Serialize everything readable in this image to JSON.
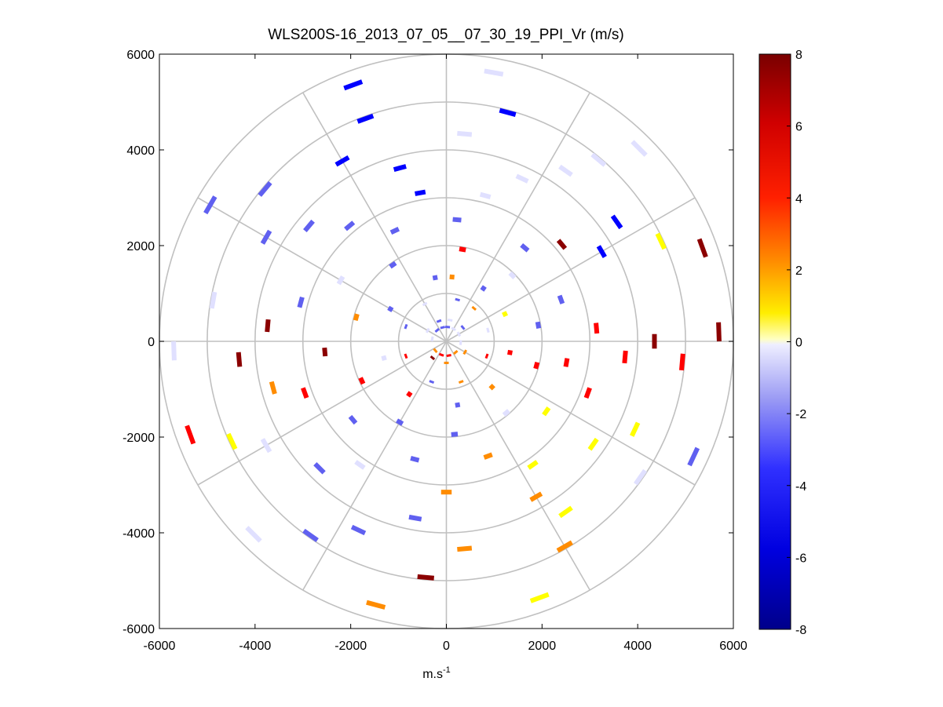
{
  "chart_data": {
    "type": "polar-ppi-scatter",
    "title": "WLS200S-16_2013_07_05__07_30_19_PPI_Vr (m/s)",
    "xlabel_base": "m.s",
    "xlabel_exp": "-1",
    "ylabel": "",
    "xlim": [
      -6000,
      6000
    ],
    "ylim": [
      -6000,
      6000
    ],
    "x_ticks": [
      "-6000",
      "-4000",
      "-2000",
      "0",
      "2000",
      "4000",
      "6000"
    ],
    "y_ticks": [
      "6000",
      "4000",
      "2000",
      "0",
      "-2000",
      "-4000",
      "-6000"
    ],
    "range_rings": [
      1000,
      2000,
      3000,
      4000,
      5000,
      6000
    ],
    "azimuth_spokes_deg": [
      0,
      30,
      60,
      90,
      120,
      150,
      180,
      210,
      240,
      270,
      300,
      330
    ],
    "grid": true,
    "colorbar": {
      "min": -8,
      "max": 8,
      "tick_labels": [
        "8",
        "6",
        "4",
        "2",
        "0",
        "-2",
        "-4",
        "-6",
        "-8"
      ],
      "colormap": "blue-white-yellow-red",
      "colors": [
        "#00008f",
        "#0000ff",
        "#6060f0",
        "#e0e0ff",
        "#ffff00",
        "#ff8c00",
        "#ff0000",
        "#8b0000"
      ]
    },
    "ranges": [
      300,
      450,
      600,
      750,
      900,
      1050,
      1200,
      1350,
      1500,
      1650,
      1800,
      1950,
      2100,
      2250,
      2400,
      2550,
      2700,
      2850,
      3000,
      3150,
      3300,
      3450,
      3600,
      3750,
      3900,
      4050,
      4200,
      4350,
      4500,
      4650,
      4800,
      4950,
      5100,
      5250,
      5400,
      5550,
      5700,
      5850
    ],
    "bins": [
      {
        "az": 5,
        "r": 300,
        "v": -3
      },
      {
        "az": 30,
        "r": 300,
        "v": -2
      },
      {
        "az": 60,
        "r": 300,
        "v": -2
      },
      {
        "az": 95,
        "r": 300,
        "v": -1
      },
      {
        "az": 140,
        "r": 300,
        "v": 3
      },
      {
        "az": 170,
        "r": 300,
        "v": 4
      },
      {
        "az": 200,
        "r": 300,
        "v": 5
      },
      {
        "az": 230,
        "r": 300,
        "v": 3
      },
      {
        "az": 280,
        "r": 300,
        "v": -1
      },
      {
        "az": 320,
        "r": 300,
        "v": -3
      },
      {
        "az": 345,
        "r": 300,
        "v": -4
      },
      {
        "az": 10,
        "r": 450,
        "v": -2
      },
      {
        "az": 50,
        "r": 450,
        "v": -3
      },
      {
        "az": 120,
        "r": 450,
        "v": 2
      },
      {
        "az": 180,
        "r": 450,
        "v": 3
      },
      {
        "az": 220,
        "r": 450,
        "v": 6
      },
      {
        "az": 300,
        "r": 450,
        "v": -2
      },
      {
        "az": 340,
        "r": 450,
        "v": -3
      },
      {
        "az": 15,
        "r": 900,
        "v": -3
      },
      {
        "az": 40,
        "r": 900,
        "v": 3
      },
      {
        "az": 75,
        "r": 900,
        "v": -2
      },
      {
        "az": 110,
        "r": 900,
        "v": 5
      },
      {
        "az": 160,
        "r": 900,
        "v": 2
      },
      {
        "az": 200,
        "r": 900,
        "v": -3
      },
      {
        "az": 250,
        "r": 900,
        "v": 4
      },
      {
        "az": 290,
        "r": 900,
        "v": -4
      },
      {
        "az": 330,
        "r": 900,
        "v": -2
      },
      {
        "az": 5,
        "r": 1350,
        "v": 2
      },
      {
        "az": 35,
        "r": 1350,
        "v": -4
      },
      {
        "az": 65,
        "r": 1350,
        "v": 1
      },
      {
        "az": 100,
        "r": 1350,
        "v": 5
      },
      {
        "az": 135,
        "r": 1350,
        "v": 3
      },
      {
        "az": 170,
        "r": 1350,
        "v": -3
      },
      {
        "az": 215,
        "r": 1350,
        "v": 5
      },
      {
        "az": 255,
        "r": 1350,
        "v": -2
      },
      {
        "az": 300,
        "r": 1350,
        "v": -3
      },
      {
        "az": 350,
        "r": 1350,
        "v": -4
      },
      {
        "az": 10,
        "r": 1950,
        "v": 5
      },
      {
        "az": 45,
        "r": 1950,
        "v": -2
      },
      {
        "az": 80,
        "r": 1950,
        "v": -3
      },
      {
        "az": 105,
        "r": 1950,
        "v": 5
      },
      {
        "az": 140,
        "r": 1950,
        "v": -1
      },
      {
        "az": 175,
        "r": 1950,
        "v": -4
      },
      {
        "az": 210,
        "r": 1950,
        "v": -3
      },
      {
        "az": 245,
        "r": 1950,
        "v": 5
      },
      {
        "az": 285,
        "r": 1950,
        "v": 3
      },
      {
        "az": 325,
        "r": 1950,
        "v": -4
      },
      {
        "az": 5,
        "r": 2550,
        "v": -4
      },
      {
        "az": 40,
        "r": 2550,
        "v": -3
      },
      {
        "az": 70,
        "r": 2550,
        "v": -4
      },
      {
        "az": 100,
        "r": 2550,
        "v": 5
      },
      {
        "az": 125,
        "r": 2550,
        "v": 1
      },
      {
        "az": 160,
        "r": 2550,
        "v": 2
      },
      {
        "az": 195,
        "r": 2550,
        "v": -4
      },
      {
        "az": 230,
        "r": 2550,
        "v": -3
      },
      {
        "az": 265,
        "r": 2550,
        "v": 6
      },
      {
        "az": 300,
        "r": 2550,
        "v": -2
      },
      {
        "az": 335,
        "r": 2550,
        "v": -3
      },
      {
        "az": 15,
        "r": 3150,
        "v": -2
      },
      {
        "az": 50,
        "r": 3150,
        "v": 6
      },
      {
        "az": 85,
        "r": 3150,
        "v": 5
      },
      {
        "az": 110,
        "r": 3150,
        "v": 5
      },
      {
        "az": 145,
        "r": 3150,
        "v": 1
      },
      {
        "az": 180,
        "r": 3150,
        "v": 3
      },
      {
        "az": 215,
        "r": 3150,
        "v": -2
      },
      {
        "az": 250,
        "r": 3150,
        "v": 4
      },
      {
        "az": 285,
        "r": 3150,
        "v": -3
      },
      {
        "az": 320,
        "r": 3150,
        "v": -4
      },
      {
        "az": 350,
        "r": 3150,
        "v": -5
      },
      {
        "az": 25,
        "r": 3750,
        "v": -1
      },
      {
        "az": 60,
        "r": 3750,
        "v": -5
      },
      {
        "az": 95,
        "r": 3750,
        "v": 5
      },
      {
        "az": 125,
        "r": 3750,
        "v": 1
      },
      {
        "az": 150,
        "r": 3750,
        "v": 2
      },
      {
        "az": 190,
        "r": 3750,
        "v": -3
      },
      {
        "az": 225,
        "r": 3750,
        "v": -3
      },
      {
        "az": 255,
        "r": 3750,
        "v": 2
      },
      {
        "az": 275,
        "r": 3750,
        "v": 6
      },
      {
        "az": 310,
        "r": 3750,
        "v": -4
      },
      {
        "az": 345,
        "r": 3750,
        "v": -5
      },
      {
        "az": 5,
        "r": 4350,
        "v": -2
      },
      {
        "az": 35,
        "r": 4350,
        "v": -2
      },
      {
        "az": 55,
        "r": 4350,
        "v": -5
      },
      {
        "az": 90,
        "r": 4350,
        "v": 6
      },
      {
        "az": 115,
        "r": 4350,
        "v": 1
      },
      {
        "az": 145,
        "r": 4350,
        "v": 1
      },
      {
        "az": 175,
        "r": 4350,
        "v": 2
      },
      {
        "az": 205,
        "r": 4350,
        "v": -3
      },
      {
        "az": 240,
        "r": 4350,
        "v": -2
      },
      {
        "az": 265,
        "r": 4350,
        "v": 6
      },
      {
        "az": 300,
        "r": 4350,
        "v": -4
      },
      {
        "az": 330,
        "r": 4350,
        "v": -6
      },
      {
        "az": 15,
        "r": 4950,
        "v": -5
      },
      {
        "az": 40,
        "r": 4950,
        "v": -2
      },
      {
        "az": 65,
        "r": 4950,
        "v": 1
      },
      {
        "az": 95,
        "r": 4950,
        "v": 5
      },
      {
        "az": 125,
        "r": 4950,
        "v": -2
      },
      {
        "az": 150,
        "r": 4950,
        "v": 2
      },
      {
        "az": 185,
        "r": 4950,
        "v": 7
      },
      {
        "az": 215,
        "r": 4950,
        "v": -4
      },
      {
        "az": 245,
        "r": 4950,
        "v": 1
      },
      {
        "az": 280,
        "r": 4950,
        "v": -1
      },
      {
        "az": 310,
        "r": 4950,
        "v": -4
      },
      {
        "az": 340,
        "r": 4950,
        "v": -5
      },
      {
        "az": 10,
        "r": 5700,
        "v": -1
      },
      {
        "az": 45,
        "r": 5700,
        "v": -2
      },
      {
        "az": 70,
        "r": 5700,
        "v": 6
      },
      {
        "az": 88,
        "r": 5700,
        "v": 7
      },
      {
        "az": 115,
        "r": 5700,
        "v": -3
      },
      {
        "az": 160,
        "r": 5700,
        "v": 1
      },
      {
        "az": 195,
        "r": 5700,
        "v": 2
      },
      {
        "az": 225,
        "r": 5700,
        "v": -1
      },
      {
        "az": 250,
        "r": 5700,
        "v": 4
      },
      {
        "az": 268,
        "r": 5700,
        "v": -1
      },
      {
        "az": 300,
        "r": 5700,
        "v": -4
      },
      {
        "az": 340,
        "r": 5700,
        "v": -6
      }
    ]
  }
}
